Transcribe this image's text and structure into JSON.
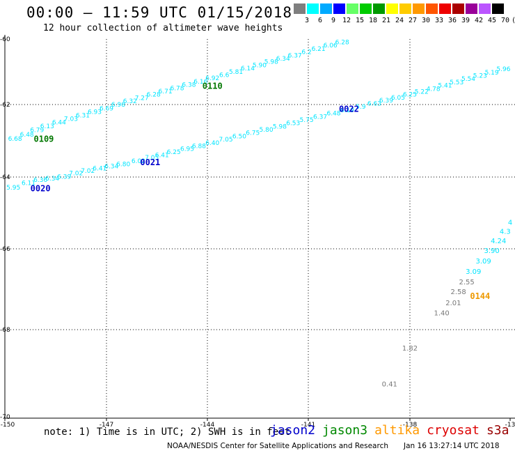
{
  "header": {
    "title": "00:00 – 11:59 UTC 01/15/2018",
    "subtitle": "12 hour collection of altimeter wave heights"
  },
  "colorbar": {
    "colors": [
      "#7f7f7f",
      "#00ffff",
      "#00aaff",
      "#0000ff",
      "#66ff66",
      "#00cc00",
      "#009900",
      "#ffff00",
      "#ffcc00",
      "#ff9900",
      "#ff5500",
      "#ee0000",
      "#aa0000",
      "#990099",
      "#bb55ff",
      "#000000"
    ],
    "labels": [
      "3",
      "6",
      "9",
      "12",
      "15",
      "18",
      "21",
      "24",
      "27",
      "30",
      "33",
      "36",
      "39",
      "42",
      "45",
      "70",
      "(ft)"
    ]
  },
  "chart_data": {
    "type": "scatter",
    "xlim": [
      -150,
      -135
    ],
    "ylim": [
      -70,
      -60
    ],
    "x_ticks": [
      "-150",
      "-147",
      "-144",
      "-141",
      "-138",
      "-13"
    ],
    "y_ticks": [
      "-60",
      "-62",
      "-64",
      "-66",
      "-68",
      "-70"
    ],
    "tracks": [
      {
        "satellite": "jason3",
        "label": "0109",
        "label_pos": {
          "lon": -148.85,
          "lat": -63.03
        },
        "points": [
          {
            "lon": -149.7,
            "lat": -63.0,
            "v": "6.68"
          },
          {
            "lon": -149.35,
            "lat": -62.88,
            "v": "6.48"
          },
          {
            "lon": -149.05,
            "lat": -62.76,
            "v": "6.79"
          },
          {
            "lon": -148.75,
            "lat": -62.65,
            "v": "6.13"
          },
          {
            "lon": -148.4,
            "lat": -62.55,
            "v": "6.44"
          },
          {
            "lon": -148.05,
            "lat": -62.45,
            "v": "7.03"
          },
          {
            "lon": -147.7,
            "lat": -62.36,
            "v": "6.31"
          },
          {
            "lon": -147.35,
            "lat": -62.26,
            "v": "6.93"
          },
          {
            "lon": -147.0,
            "lat": -62.16,
            "v": "6.69"
          },
          {
            "lon": -146.65,
            "lat": -62.06,
            "v": "6.98"
          },
          {
            "lon": -146.3,
            "lat": -61.96,
            "v": "6.32"
          },
          {
            "lon": -145.95,
            "lat": -61.86,
            "v": "7.27"
          },
          {
            "lon": -145.6,
            "lat": -61.76,
            "v": "6.28"
          },
          {
            "lon": -145.25,
            "lat": -61.66,
            "v": "6.71"
          },
          {
            "lon": -144.9,
            "lat": -61.56,
            "v": "6.78"
          },
          {
            "lon": -144.55,
            "lat": -61.46,
            "v": "6.38"
          },
          {
            "lon": -144.2,
            "lat": -61.36,
            "v": "6.16"
          },
          {
            "lon": -143.85,
            "lat": -61.26,
            "v": "6.92"
          },
          {
            "lon": -143.5,
            "lat": -61.16,
            "v": "6.6"
          },
          {
            "lon": -143.15,
            "lat": -61.06,
            "v": "5.81"
          },
          {
            "lon": -142.8,
            "lat": -60.96,
            "v": "6.14"
          },
          {
            "lon": -142.45,
            "lat": -60.86,
            "v": "5.90"
          },
          {
            "lon": -142.1,
            "lat": -60.76,
            "v": "5.98"
          },
          {
            "lon": -141.75,
            "lat": -60.66,
            "v": "6.34"
          },
          {
            "lon": -141.4,
            "lat": -60.56,
            "v": "6.37"
          },
          {
            "lon": -141.05,
            "lat": -60.46,
            "v": "6.2"
          },
          {
            "lon": -140.7,
            "lat": -60.36,
            "v": "6.21"
          },
          {
            "lon": -140.35,
            "lat": -60.26,
            "v": "6.06"
          },
          {
            "lon": -140.0,
            "lat": -60.16,
            "v": "6.28"
          }
        ]
      },
      {
        "satellite": "jason2",
        "label": "0020",
        "label_pos": {
          "lon": -148.95,
          "lat": -64.4
        },
        "points": [
          {
            "lon": -149.75,
            "lat": -64.35,
            "v": "5.95"
          },
          {
            "lon": -149.3,
            "lat": -64.22,
            "v": "6.11"
          },
          {
            "lon": -148.95,
            "lat": -64.14,
            "v": "6.36"
          },
          {
            "lon": -148.6,
            "lat": -64.1,
            "v": "6.34"
          },
          {
            "lon": -148.25,
            "lat": -64.05,
            "v": "6.39"
          },
          {
            "lon": -147.9,
            "lat": -63.95,
            "v": "7.02"
          },
          {
            "lon": -147.55,
            "lat": -63.88,
            "v": "7.02"
          },
          {
            "lon": -147.2,
            "lat": -63.82,
            "v": "6.41"
          },
          {
            "lon": -146.85,
            "lat": -63.76,
            "v": "6.34"
          },
          {
            "lon": -146.5,
            "lat": -63.7,
            "v": "6.80"
          },
          {
            "lon": -146.05,
            "lat": -63.62,
            "v": "6.02"
          },
          {
            "lon": -145.65,
            "lat": -63.52,
            "v": "7.05"
          },
          {
            "lon": -145.35,
            "lat": -63.45,
            "v": "6.41"
          },
          {
            "lon": -145.0,
            "lat": -63.37,
            "v": "6.25"
          },
          {
            "lon": -144.6,
            "lat": -63.28,
            "v": "6.95"
          },
          {
            "lon": -144.25,
            "lat": -63.2,
            "v": "6.88"
          },
          {
            "lon": -143.85,
            "lat": -63.12,
            "v": "6.40"
          },
          {
            "lon": -143.45,
            "lat": -63.02,
            "v": "7.05"
          },
          {
            "lon": -143.05,
            "lat": -62.93,
            "v": "6.50"
          },
          {
            "lon": -142.65,
            "lat": -62.84,
            "v": "6.75"
          },
          {
            "lon": -142.25,
            "lat": -62.75,
            "v": "5.80"
          },
          {
            "lon": -141.85,
            "lat": -62.66,
            "v": "5.98"
          },
          {
            "lon": -141.45,
            "lat": -62.57,
            "v": "6.53"
          },
          {
            "lon": -141.05,
            "lat": -62.48,
            "v": "5.75"
          },
          {
            "lon": -140.65,
            "lat": -62.39,
            "v": "6.37"
          },
          {
            "lon": -140.25,
            "lat": -62.3,
            "v": "6.48"
          },
          {
            "lon": -139.85,
            "lat": -62.21,
            "v": "6.19"
          },
          {
            "lon": -139.45,
            "lat": -62.12,
            "v": "5.9"
          },
          {
            "lon": -139.05,
            "lat": -62.03,
            "v": "6.63"
          },
          {
            "lon": -138.7,
            "lat": -61.94,
            "v": "6.39"
          },
          {
            "lon": -138.35,
            "lat": -61.85,
            "v": "6.05"
          },
          {
            "lon": -138.0,
            "lat": -61.76,
            "v": "6.25"
          },
          {
            "lon": -137.65,
            "lat": -61.67,
            "v": "5.22"
          },
          {
            "lon": -137.3,
            "lat": -61.58,
            "v": "4.78"
          },
          {
            "lon": -136.95,
            "lat": -61.48,
            "v": "5.41"
          },
          {
            "lon": -136.6,
            "lat": -61.38,
            "v": "5.53"
          },
          {
            "lon": -136.25,
            "lat": -61.28,
            "v": "5.54"
          },
          {
            "lon": -135.9,
            "lat": -61.18,
            "v": "5.23"
          },
          {
            "lon": -135.55,
            "lat": -61.08,
            "v": "5.19"
          },
          {
            "lon": -135.2,
            "lat": -60.98,
            "v": "5.96"
          }
        ]
      },
      {
        "satellite": "cryosat",
        "label": "0144",
        "label_pos": {
          "lon": -135.9,
          "lat": -67.24
        },
        "points": [
          {
            "lon": -138.6,
            "lat": -69.3,
            "v": "0.41"
          },
          {
            "lon": -138.0,
            "lat": -68.48,
            "v": "1.82"
          },
          {
            "lon": -137.05,
            "lat": -67.65,
            "v": "1.40"
          },
          {
            "lon": -136.7,
            "lat": -67.4,
            "v": "2.01"
          },
          {
            "lon": -136.55,
            "lat": -67.12,
            "v": "2.58"
          },
          {
            "lon": -136.3,
            "lat": -66.88,
            "v": "2.55"
          },
          {
            "lon": -136.1,
            "lat": -66.62,
            "v": "3.09"
          },
          {
            "lon": -135.8,
            "lat": -66.36,
            "v": "3.09"
          },
          {
            "lon": -135.55,
            "lat": -66.1,
            "v": "3.90"
          },
          {
            "lon": -135.35,
            "lat": -65.84,
            "v": "4.24"
          },
          {
            "lon": -135.15,
            "lat": -65.58,
            "v": "4.3"
          },
          {
            "lon": -135.0,
            "lat": -65.33,
            "v": "4"
          }
        ]
      },
      {
        "satellite": "jason2",
        "label": "0021",
        "label_pos": {
          "lon": -145.7,
          "lat": -63.67
        },
        "points": []
      },
      {
        "satellite": "jason2",
        "label": "0022",
        "label_pos": {
          "lon": -139.8,
          "lat": -62.2
        },
        "points": []
      },
      {
        "satellite": "jason3",
        "label": "0110",
        "label_pos": {
          "lon": -143.85,
          "lat": -61.52
        },
        "points": []
      }
    ]
  },
  "footer": {
    "note": "note: 1) Time is in UTC; 2) SWH is in feet",
    "satellites": [
      {
        "name": "jason2",
        "color": "#0000cc"
      },
      {
        "name": "jason3",
        "color": "#008800"
      },
      {
        "name": "altika",
        "color": "#ff9900"
      },
      {
        "name": "cryosat",
        "color": "#dd0000"
      },
      {
        "name": "s3a",
        "color": "#990000"
      }
    ],
    "credit": "NOAA/NESDIS Center for Satellite Applications and Research",
    "timestamp": "Jan 16 13:27:14 UTC 2018"
  },
  "colors": {
    "jason2_label": "#0000cc",
    "jason3_label": "#007700",
    "cryosat_label": "#ee9900",
    "swh_cyan": "#00e5ff",
    "swh_gray": "#777777"
  }
}
